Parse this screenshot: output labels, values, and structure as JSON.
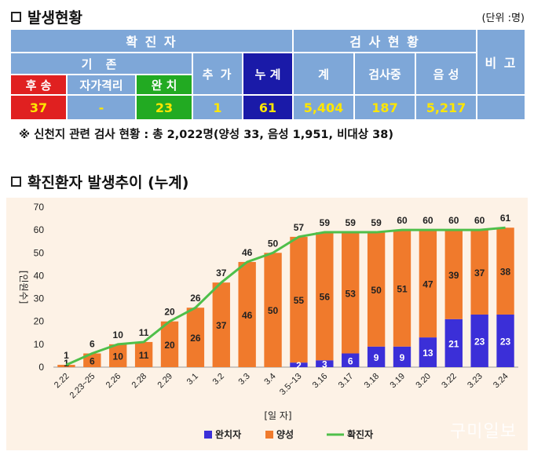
{
  "section1": {
    "title": "발생현황",
    "unit": "(단위 :명)"
  },
  "table": {
    "confirmed_header": "확 진 자",
    "existing_header": "기 존",
    "added_header": "추 가",
    "cumulative_header": "누 계",
    "test_header": "검 사 현 황",
    "remarks_header": "비 고",
    "transferred_label": "후 송",
    "selfquarantine_label": "자가격리",
    "recovered_label": "완 치",
    "test_total_label": "계",
    "testing_label": "검사중",
    "negative_label": "음 성",
    "transferred": "37",
    "selfquarantine": "-",
    "recovered": "23",
    "added": "1",
    "cumulative": "61",
    "test_total": "5,404",
    "testing": "187",
    "negative": "5,217",
    "remarks": ""
  },
  "note": "※ 신천지 관련 검사 현황 : 총 2,022명(양성 33, 음성 1,951, 비대상 38)",
  "section2": {
    "title": "확진환자 발생추이 (누계)"
  },
  "chart_data": {
    "type": "bar",
    "ylabel": "[인원수]",
    "xlabel": "[일 자]",
    "ylim": [
      0,
      70
    ],
    "yticks": [
      0,
      10,
      20,
      30,
      40,
      50,
      60,
      70
    ],
    "categories": [
      "2.22",
      "2.23~25",
      "2.26",
      "2.28",
      "2.29",
      "3.1",
      "3.2",
      "3.3",
      "3.4",
      "3.5~13",
      "3.16",
      "3.17",
      "3.18",
      "3.19",
      "3.20",
      "3.22",
      "3.23",
      "3.24"
    ],
    "stacked": true,
    "series": [
      {
        "name": "완치자",
        "type": "bar",
        "color": "#3b2fd8",
        "values": [
          0,
          0,
          0,
          0,
          0,
          0,
          0,
          0,
          0,
          2,
          3,
          6,
          9,
          9,
          13,
          21,
          23,
          23
        ]
      },
      {
        "name": "양성",
        "type": "bar",
        "color": "#f07a2c",
        "values": [
          1,
          6,
          10,
          11,
          20,
          26,
          37,
          46,
          50,
          55,
          56,
          53,
          50,
          51,
          47,
          39,
          37,
          38
        ]
      },
      {
        "name": "확진자",
        "type": "line",
        "color": "#4fbf4a",
        "values": [
          1,
          6,
          10,
          11,
          20,
          26,
          37,
          46,
          50,
          57,
          59,
          59,
          59,
          60,
          60,
          60,
          60,
          61
        ]
      }
    ],
    "legend_position": "bottom",
    "grid": false
  },
  "watermark": "구미일보"
}
